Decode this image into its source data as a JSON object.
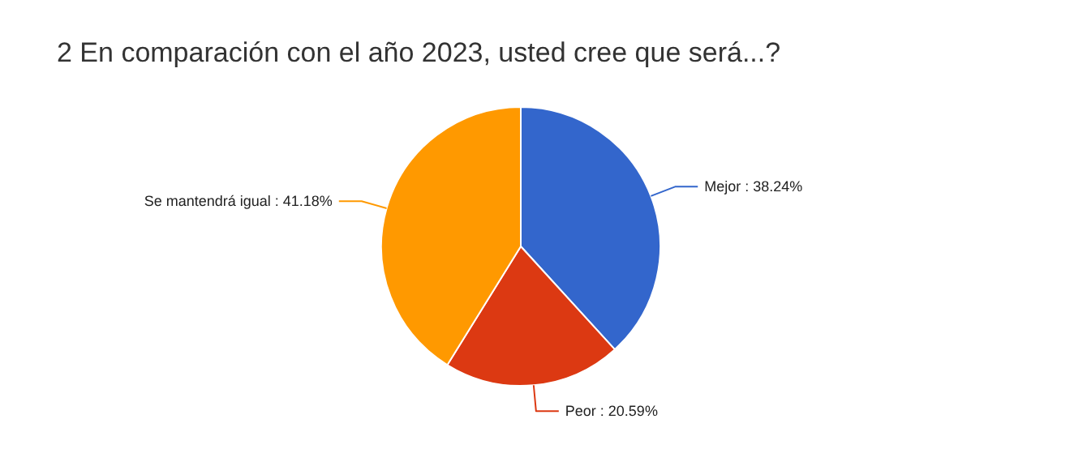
{
  "chart_data": {
    "type": "pie",
    "title": "2 En comparación con el año 2023, usted cree que será...?",
    "categories": [
      "Mejor",
      "Peor",
      "Se mantendrá igual"
    ],
    "values": [
      38.24,
      20.59,
      41.18
    ],
    "colors": [
      "#3366cc",
      "#dc3912",
      "#ff9900"
    ],
    "value_labels": [
      "38.24%",
      "20.59%",
      "41.18%"
    ]
  }
}
